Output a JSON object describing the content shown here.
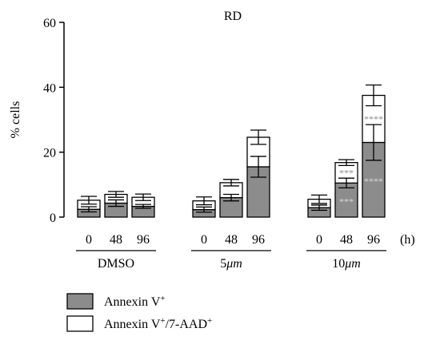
{
  "chart_data": {
    "type": "bar",
    "stacked": true,
    "title": "RD",
    "ylabel": "% cells",
    "x_unit": "(h)",
    "ylim": [
      0,
      60
    ],
    "yticks": [
      0,
      20,
      40,
      60
    ],
    "groups": [
      {
        "label": "DMSO",
        "categories": [
          "0",
          "48",
          "96"
        ],
        "annexin_v": [
          2.4,
          4.3,
          3.3
        ],
        "total": [
          5.2,
          7.0,
          6.1
        ],
        "annexin_v_err": [
          0.8,
          1.0,
          0.6
        ],
        "total_err": [
          1.2,
          0.9,
          1.0
        ],
        "sig_annexin_v": [
          "",
          "",
          ""
        ],
        "sig_total": [
          "",
          "",
          ""
        ]
      },
      {
        "label": "5μm",
        "label_parts": [
          "5",
          "μm"
        ],
        "categories": [
          "0",
          "48",
          "96"
        ],
        "annexin_v": [
          2.3,
          6.0,
          15.5
        ],
        "total": [
          5.0,
          10.6,
          24.6
        ],
        "annexin_v_err": [
          0.8,
          1.0,
          3.2
        ],
        "total_err": [
          1.2,
          1.0,
          2.2
        ],
        "sig_annexin_v": [
          "",
          "",
          ""
        ],
        "sig_total": [
          "",
          "",
          ""
        ]
      },
      {
        "label": "10μm",
        "label_parts": [
          "10",
          "μm"
        ],
        "categories": [
          "0",
          "48",
          "96"
        ],
        "annexin_v": [
          2.9,
          10.5,
          23.0
        ],
        "total": [
          5.5,
          16.8,
          37.5
        ],
        "annexin_v_err": [
          0.8,
          1.5,
          5.5
        ],
        "total_err": [
          1.3,
          0.9,
          3.2
        ],
        "sig_annexin_v": [
          "",
          "***",
          "****"
        ],
        "sig_total": [
          "",
          "***",
          "****"
        ]
      }
    ],
    "series": [
      {
        "name": "Annexin V",
        "sup": "+",
        "color": "#8c8c8c"
      },
      {
        "name": "Annexin V",
        "sup": "+",
        "suffix": "/7-AAD",
        "suffix_sup": "+",
        "color": "#ffffff"
      }
    ],
    "legend_position": "bottom-left",
    "grid": false
  }
}
